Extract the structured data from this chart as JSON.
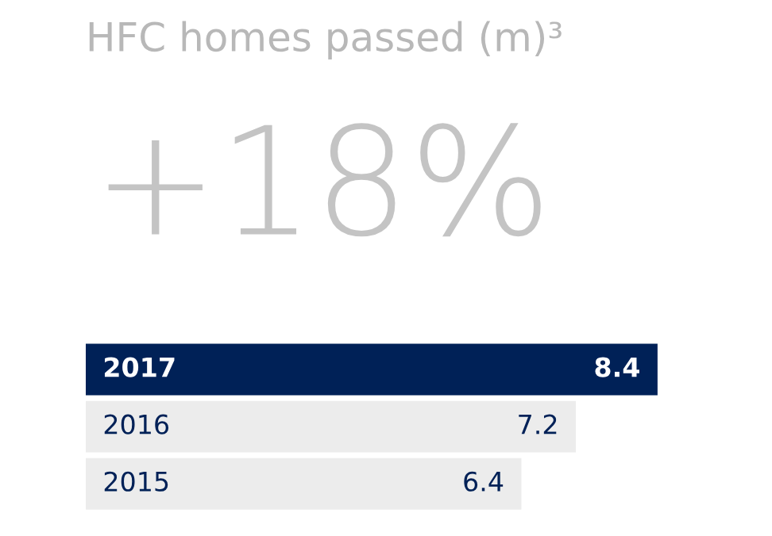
{
  "chart_data": {
    "type": "bar",
    "orientation": "horizontal",
    "title": "HFC homes passed (m)³",
    "annotations": [
      "+18%"
    ],
    "categories": [
      "2017",
      "2016",
      "2015"
    ],
    "values": [
      8.4,
      7.2,
      6.4
    ],
    "colors": [
      "#002157",
      "#ececec",
      "#ececec"
    ],
    "data_labels": true,
    "tick_labels": "y"
  }
}
